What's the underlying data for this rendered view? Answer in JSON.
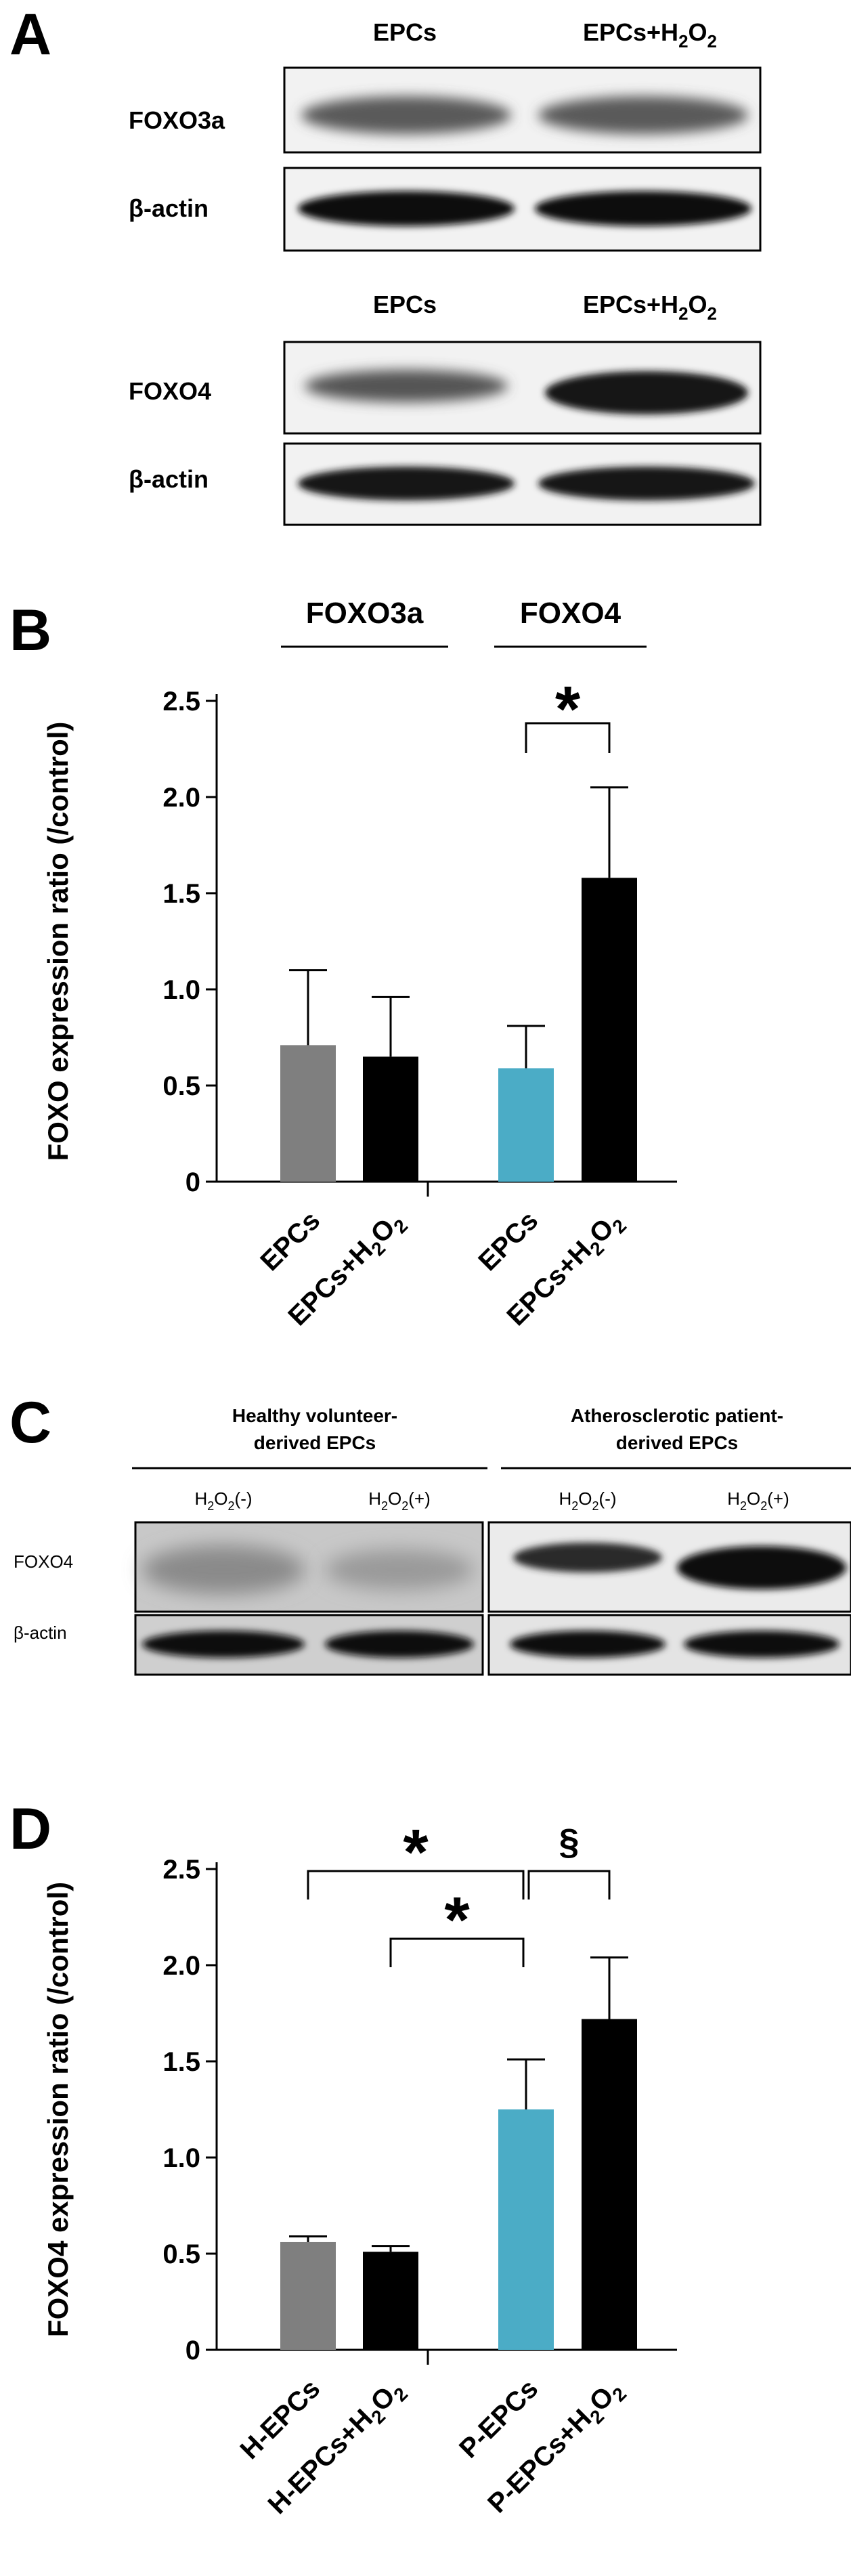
{
  "panels": {
    "a": "A",
    "b": "B",
    "c": "C",
    "d": "D"
  },
  "blot_a1": {
    "col1": "EPCs",
    "col2_main": "EPCs+H",
    "col2_sub": "2",
    "col2_tail": "O",
    "col2_sub2": "2",
    "row1": "FOXO3a",
    "row2": "β-actin"
  },
  "blot_a2": {
    "col1": "EPCs",
    "col2_main": "EPCs+H",
    "col2_sub": "2",
    "col2_tail": "O",
    "col2_sub2": "2",
    "row1": "FOXO4",
    "row2": "β-actin"
  },
  "blot_c": {
    "group1_line1": "Healthy volunteer-",
    "group1_line2": "derived EPCs",
    "group2_line1": "Atherosclerotic patient-",
    "group2_line2": "derived EPCs",
    "col_minus": "(-)",
    "col_plus": "(+)",
    "h": "H",
    "o": "O",
    "sub": "2",
    "row1": "FOXO4",
    "row2": "β-actin"
  },
  "chart_data": [
    {
      "type": "bar",
      "ylabel": "FOXO expression ratio (/control)",
      "ylim": [
        0,
        2.5
      ],
      "yticks": [
        "0",
        "0.5",
        "1.0",
        "1.5",
        "2.0",
        "2.5"
      ],
      "group_labels": [
        "FOXO3a",
        "FOXO4"
      ],
      "categories": [
        "EPCs",
        "EPCs+H2O2",
        "EPCs",
        "EPCs+H2O2"
      ],
      "values": [
        0.71,
        0.65,
        0.59,
        1.58
      ],
      "errors": [
        0.39,
        0.31,
        0.22,
        0.47
      ],
      "colors": [
        "#7f7f7f",
        "#000000",
        "#4bacc6",
        "#000000"
      ],
      "significance": [
        {
          "from": 2,
          "to": 3,
          "mark": "*"
        }
      ]
    },
    {
      "type": "bar",
      "ylabel": "FOXO4 expression ratio (/control)",
      "ylim": [
        0,
        2.5
      ],
      "yticks": [
        "0",
        "0.5",
        "1.0",
        "1.5",
        "2.0",
        "2.5"
      ],
      "categories": [
        "H-EPCs",
        "H-EPCs+H2O2",
        "P-EPCs",
        "P-EPCs+H2O2"
      ],
      "values": [
        0.56,
        0.51,
        1.25,
        1.72
      ],
      "errors": [
        0.03,
        0.03,
        0.26,
        0.32
      ],
      "colors": [
        "#7f7f7f",
        "#000000",
        "#4bacc6",
        "#000000"
      ],
      "significance": [
        {
          "from": 0,
          "to": 2,
          "mark": "*"
        },
        {
          "from": 1,
          "to": 2,
          "mark": "*"
        },
        {
          "from": 2,
          "to": 3,
          "mark": "§"
        }
      ]
    }
  ]
}
